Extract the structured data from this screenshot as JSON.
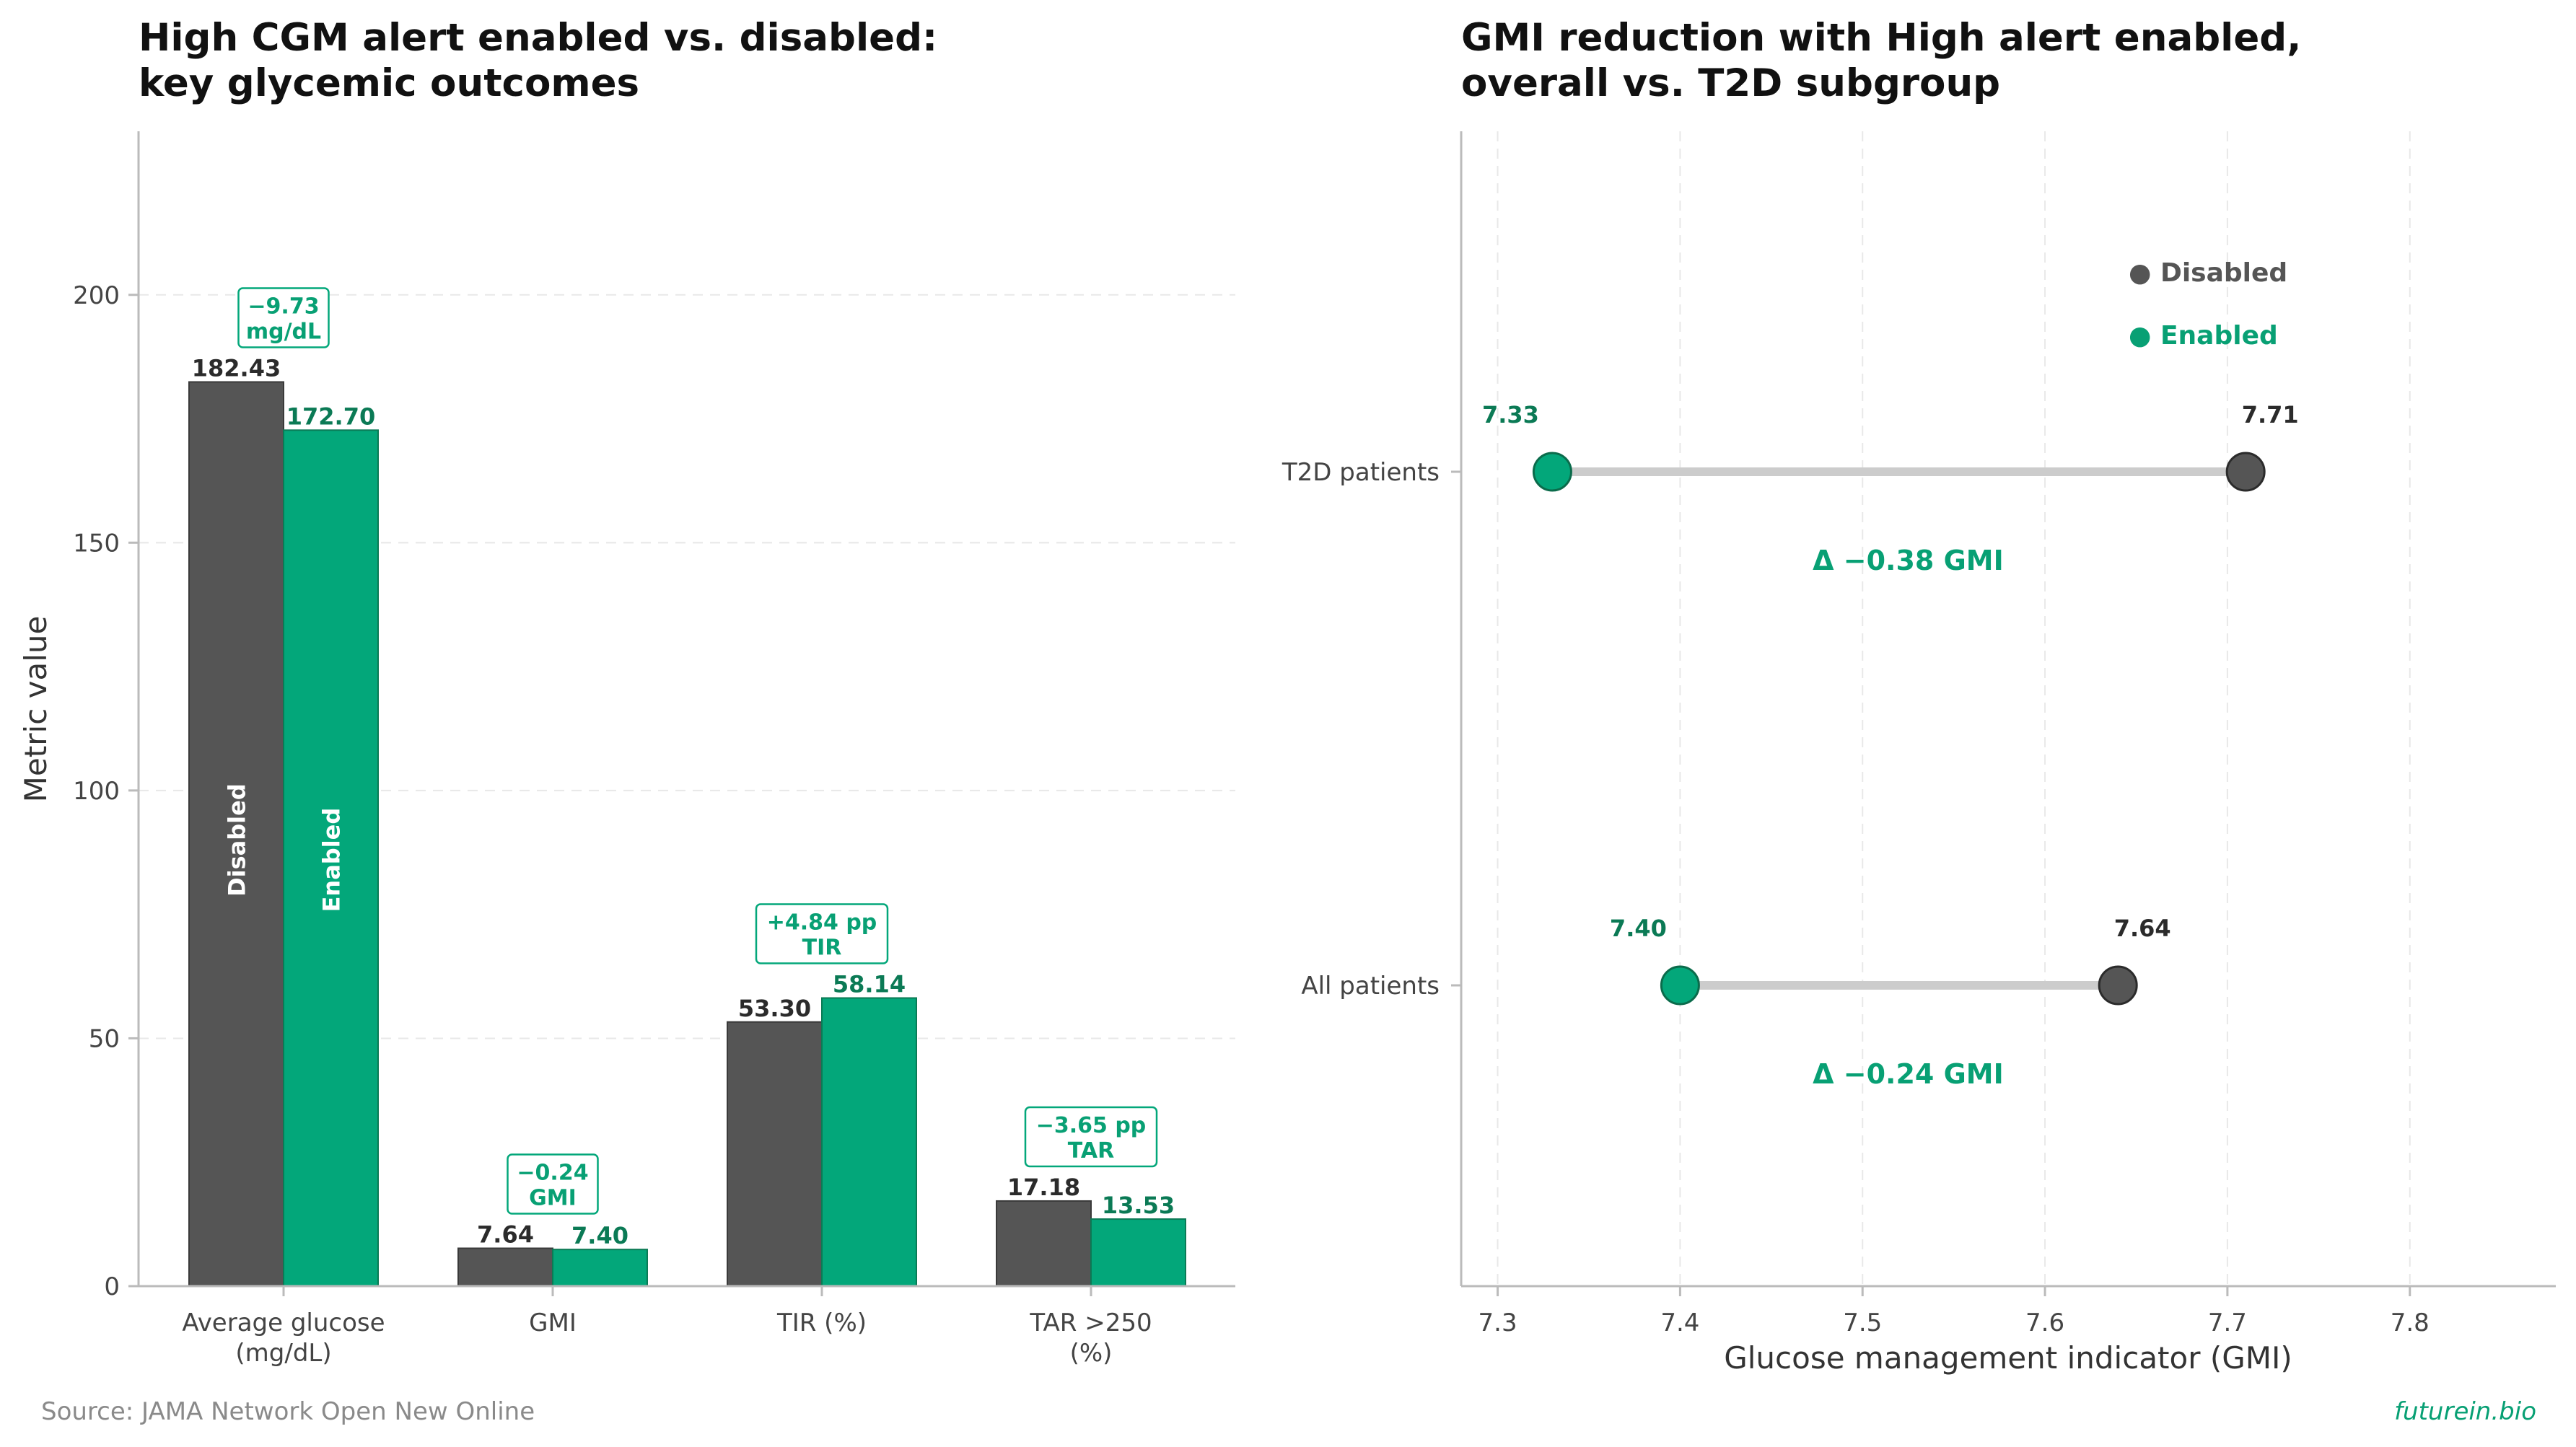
{
  "colors": {
    "disabled": "#555555",
    "enabled": "#03a77a",
    "enabled_text": "#0b7a55",
    "connector": "#cccccc"
  },
  "chart_data": [
    {
      "type": "bar",
      "title_line1": "High CGM alert enabled vs. disabled:",
      "title_line2": "key glycemic outcomes",
      "ylabel": "Metric value",
      "ylim": [
        0,
        233
      ],
      "yticks": [
        "0",
        "50",
        "100",
        "150",
        "200"
      ],
      "categories": [
        {
          "line1": "Average glucose",
          "line2": "(mg/dL)"
        },
        {
          "line1": "GMI",
          "line2": ""
        },
        {
          "line1": "TIR (%)",
          "line2": ""
        },
        {
          "line1": "TAR >250",
          "line2": "(%)"
        }
      ],
      "series": [
        {
          "name": "Disabled",
          "values": [
            182.43,
            7.64,
            53.3,
            17.18
          ],
          "labels": [
            "182.43",
            "7.64",
            "53.30",
            "17.18"
          ]
        },
        {
          "name": "Enabled",
          "values": [
            172.7,
            7.4,
            58.14,
            13.53
          ],
          "labels": [
            "172.70",
            "7.40",
            "58.14",
            "13.53"
          ]
        }
      ],
      "annotations": [
        {
          "line1": "−9.73",
          "line2": "mg/dL"
        },
        {
          "line1": "−0.24",
          "line2": "GMI"
        },
        {
          "line1": "+4.84 pp",
          "line2": "TIR"
        },
        {
          "line1": "−3.65 pp",
          "line2": "TAR"
        }
      ],
      "grid": true
    },
    {
      "type": "scatter",
      "subtype": "dumbbell",
      "title_line1": "GMI reduction with High alert enabled,",
      "title_line2": "overall vs. T2D subgroup",
      "xlabel": "Glucose management indicator (GMI)",
      "xlim": [
        7.28,
        7.88
      ],
      "xticks": [
        "7.3",
        "7.4",
        "7.5",
        "7.6",
        "7.7",
        "7.8"
      ],
      "rows": [
        {
          "label": "T2D patients",
          "disabled": 7.71,
          "enabled": 7.33,
          "disabled_label": "7.71",
          "enabled_label": "7.33",
          "delta": "Δ −0.38 GMI"
        },
        {
          "label": "All patients",
          "disabled": 7.64,
          "enabled": 7.4,
          "disabled_label": "7.64",
          "enabled_label": "7.40",
          "delta": "Δ −0.24 GMI"
        }
      ],
      "legend": {
        "disabled": "● Disabled",
        "enabled": "● Enabled",
        "position": "upper-right"
      },
      "grid": true
    }
  ],
  "footer": {
    "source": "Source: JAMA Network Open New Online",
    "brand": "futurein.bio"
  }
}
